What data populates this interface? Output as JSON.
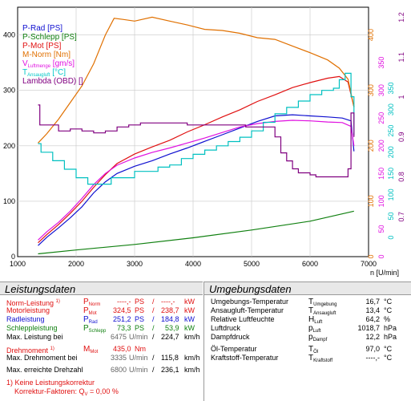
{
  "chart_data": {
    "type": "line",
    "xlabel": "n [U/min]",
    "xlim": [
      1000,
      7000
    ],
    "x_ticks": [
      "1000",
      "2000",
      "3000",
      "4000",
      "5000",
      "6000",
      "7000"
    ],
    "left_axis": {
      "ylim": [
        0,
        450
      ],
      "ticks": [
        "0",
        "100",
        "200",
        "300",
        "400"
      ]
    },
    "axis_torque": {
      "ylim": [
        0,
        450
      ],
      "ticks": [
        "0",
        "100",
        "200",
        "300",
        "400"
      ],
      "color": "#e07000"
    },
    "axis_flow": {
      "ylim": [
        0,
        450
      ],
      "ticks": [
        "0",
        "50",
        "100",
        "150",
        "200",
        "250",
        "300",
        "350"
      ],
      "color": "#e010e0"
    },
    "axis_temp": {
      "ylim": [
        -45,
        540
      ],
      "ticks": [
        "0",
        "50",
        "100",
        "150",
        "200",
        "250",
        "300",
        "350"
      ],
      "color": "#00c0c0"
    },
    "axis_lambda": {
      "ylim": [
        0.6,
        1.225
      ],
      "ticks": [
        "0.7",
        "0.8",
        "0.9",
        "1",
        "1.1",
        "1.2"
      ],
      "color": "#800080"
    },
    "legend_position": "top-left",
    "legend": [
      {
        "text": "P-Rad [PS]",
        "color": "#1010d0"
      },
      {
        "text": "P-Schlepp [PS]",
        "color": "#108010"
      },
      {
        "text": "P-Mot [PS]",
        "color": "#e01010"
      },
      {
        "text": "M-Norm [Nm]",
        "color": "#e07000"
      },
      {
        "text": "V",
        "sub": "Luftmenge",
        "suffix": " [gm/s]",
        "color": "#e010e0"
      },
      {
        "text": "T",
        "sub": "Ansaugluft",
        "suffix": " [°C]",
        "color": "#00c8c8"
      },
      {
        "text": "Lambda (OBD) []",
        "color": "#800080"
      }
    ],
    "series": [
      {
        "name": "P-Rad [PS]",
        "axis": "left",
        "color": "#1010d0",
        "x": [
          1350,
          1500,
          1700,
          1900,
          2100,
          2300,
          2500,
          2700,
          3000,
          3300,
          3600,
          3900,
          4200,
          4500,
          4800,
          5100,
          5400,
          5700,
          6000,
          6300,
          6550,
          6700,
          6750
        ],
        "y": [
          20,
          35,
          52,
          70,
          90,
          115,
          135,
          150,
          163,
          173,
          185,
          196,
          208,
          220,
          232,
          244,
          254,
          256,
          254,
          252,
          250,
          245,
          190
        ]
      },
      {
        "name": "P-Schlepp [PS]",
        "axis": "left",
        "color": "#108010",
        "x": [
          1350,
          2000,
          3000,
          4000,
          5000,
          6000,
          6750
        ],
        "y": [
          5,
          12,
          22,
          34,
          48,
          64,
          82
        ]
      },
      {
        "name": "P-Mot [PS]",
        "axis": "left",
        "color": "#e01010",
        "x": [
          1350,
          1500,
          1700,
          1900,
          2100,
          2300,
          2500,
          2700,
          3000,
          3300,
          3600,
          3900,
          4200,
          4500,
          4800,
          5100,
          5400,
          5700,
          6000,
          6300,
          6500,
          6650,
          6750
        ],
        "y": [
          25,
          40,
          58,
          78,
          100,
          125,
          148,
          168,
          185,
          198,
          210,
          225,
          238,
          252,
          265,
          280,
          292,
          305,
          314,
          322,
          325,
          315,
          270
        ]
      },
      {
        "name": "M-Norm [Nm]",
        "axis": "torque",
        "color": "#e07000",
        "x": [
          1350,
          1500,
          1700,
          1900,
          2100,
          2300,
          2500,
          2650,
          2800,
          3000,
          3300,
          3600,
          3900,
          4200,
          4500,
          4800,
          5100,
          5400,
          5700,
          6000,
          6300,
          6500,
          6650,
          6750
        ],
        "y": [
          205,
          222,
          248,
          278,
          308,
          348,
          400,
          430,
          428,
          425,
          432,
          425,
          418,
          410,
          408,
          403,
          395,
          392,
          380,
          368,
          355,
          340,
          320,
          270
        ]
      },
      {
        "name": "V Luftmenge [gm/s]",
        "axis": "flow",
        "color": "#e010e0",
        "x": [
          1350,
          1500,
          1700,
          1900,
          2100,
          2300,
          2500,
          2700,
          3000,
          3300,
          3600,
          3900,
          4200,
          4500,
          4800,
          5100,
          5400,
          5700,
          6000,
          6300,
          6550,
          6700,
          6750
        ],
        "y": [
          30,
          45,
          62,
          82,
          105,
          130,
          150,
          165,
          178,
          188,
          196,
          205,
          214,
          224,
          234,
          240,
          244,
          246,
          245,
          243,
          242,
          235,
          200
        ]
      },
      {
        "name": "T Ansaugluft [°C]",
        "axis": "temp",
        "color": "#00c0c0",
        "x": [
          1350,
          1400,
          1600,
          1800,
          2000,
          2200,
          2400,
          2600,
          2800,
          3000,
          3200,
          3400,
          3600,
          3800,
          4000,
          4200,
          4400,
          4600,
          4800,
          5000,
          5200,
          5400,
          5600,
          5800,
          6000,
          6200,
          6400,
          6500,
          6600,
          6700,
          6750
        ],
        "y": [
          220,
          200,
          180,
          160,
          140,
          125,
          125,
          140,
          140,
          155,
          155,
          165,
          170,
          185,
          195,
          205,
          215,
          225,
          235,
          250,
          270,
          290,
          305,
          320,
          335,
          345,
          350,
          370,
          385,
          330,
          240
        ]
      },
      {
        "name": "Lambda (OBD) []",
        "axis": "lambda",
        "color": "#800080",
        "x": [
          1350,
          1380,
          1500,
          1700,
          1900,
          2100,
          2300,
          2500,
          2700,
          2900,
          3100,
          3300,
          3500,
          3700,
          3900,
          4100,
          4300,
          4500,
          4700,
          4900,
          5100,
          5300,
          5400,
          5500,
          5600,
          5700,
          5800,
          5900,
          6000,
          6100,
          6200,
          6300,
          6400,
          6500,
          6600,
          6650,
          6700,
          6750
        ],
        "y": [
          0.98,
          0.93,
          0.93,
          0.915,
          0.92,
          0.915,
          0.91,
          0.915,
          0.925,
          0.93,
          0.935,
          0.935,
          0.935,
          0.935,
          0.93,
          0.93,
          0.93,
          0.93,
          0.93,
          0.925,
          0.925,
          0.925,
          0.9,
          0.86,
          0.84,
          0.82,
          0.81,
          0.81,
          0.805,
          0.8,
          0.8,
          0.8,
          0.8,
          0.8,
          0.8,
          0.82,
          0.96,
          0.9
        ]
      }
    ]
  },
  "leistungsdaten": {
    "title": "Leistungsdaten",
    "rows": [
      {
        "label": "Norm-Leistung",
        "note": "1)",
        "sym": "P",
        "sub": "Norm",
        "v1": "----,-",
        "u1": "PS",
        "sep": "/",
        "v2": "----,-",
        "u2": "kW"
      },
      {
        "label": "Motorleistung",
        "note": "",
        "sym": "P",
        "sub": "Mot",
        "v1": "324,5",
        "u1": "PS",
        "sep": "/",
        "v2": "238,7",
        "u2": "kW"
      },
      {
        "label": "Radleistung",
        "note": "",
        "sym": "P",
        "sub": "Rad",
        "v1": "251,2",
        "u1": "PS",
        "sep": "/",
        "v2": "184,8",
        "u2": "kW"
      },
      {
        "label": "Schleppleistung",
        "note": "",
        "sym": "P",
        "sub": "Schlepp",
        "v1": "73,3",
        "u1": "PS",
        "sep": "/",
        "v2": "53,9",
        "u2": "kW"
      },
      {
        "label": "Max. Leistung bei",
        "v1": "6475",
        "u1": "U/min",
        "sep": "/",
        "v2": "224,7",
        "u2": "km/h"
      },
      {
        "label": "Drehmoment",
        "note": "1)",
        "sym": "M",
        "sub": "Mot",
        "v1": "435,0",
        "u1": "Nm"
      },
      {
        "label": "Max. Drehmoment bei",
        "v1": "3335",
        "u1": "U/min",
        "sep": "/",
        "v2": "115,8",
        "u2": "km/h"
      },
      {
        "label": "Max. erreichte Drehzahl",
        "v1": "6800",
        "u1": "U/min",
        "sep": "/",
        "v2": "236,1",
        "u2": "km/h"
      }
    ],
    "footnote1": "1) Keine Leistungskorrektur",
    "footnote2_prefix": "Korrektur-Faktoren: Q",
    "footnote2_sub": "V",
    "footnote2_suffix": " = 0,00 %"
  },
  "umgebungsdaten": {
    "title": "Umgebungsdaten",
    "rows": [
      {
        "label": "Umgebungs-Temperatur",
        "sym": "T",
        "sub": "Umgebung",
        "value": "16,7",
        "unit": "°C"
      },
      {
        "label": "Ansaugluft-Temperatur",
        "sym": "T",
        "sub": "Ansaugluft",
        "value": "13,4",
        "unit": "°C"
      },
      {
        "label": "Relative Luftfeuchte",
        "sym": "H",
        "sub": "Luft",
        "value": "64,2",
        "unit": "%"
      },
      {
        "label": "Luftdruck",
        "sym": "p",
        "sub": "Luft",
        "value": "1018,7",
        "unit": "hPa"
      },
      {
        "label": "Dampfdruck",
        "sym": "p",
        "sub": "Dampf",
        "value": "12,2",
        "unit": "hPa"
      },
      {
        "label": "Öl-Temperatur",
        "sym": "T",
        "sub": "Öl",
        "value": "97,0",
        "unit": "°C"
      },
      {
        "label": "Kraftstoff-Temperatur",
        "sym": "T",
        "sub": "Kraftstoff",
        "value": "----,-",
        "unit": "°C"
      }
    ]
  }
}
